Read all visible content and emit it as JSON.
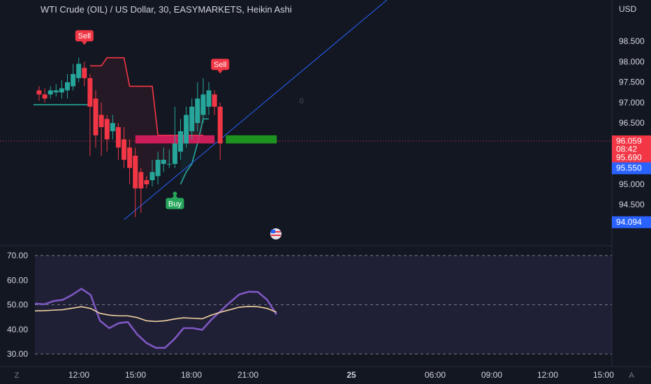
{
  "header": {
    "title": "WTI Crude (OIL) / US Dollar, 30, EASYMARKETS, Heikin Ashi",
    "currency": "USD"
  },
  "footer": {
    "left_label": "Z",
    "right_label": "A"
  },
  "colors": {
    "background": "#131722",
    "bull": "#26a69a",
    "bear": "#f23645",
    "trendline": "#2962ff",
    "supertrend_up": "#26a69a",
    "supertrend_down": "#f23645",
    "rsi": "#7e57c2",
    "rsi_ma": "#f0d2a0"
  },
  "chart_data": [
    {
      "type": "candlestick",
      "x_tick_labels": [
        "12:00",
        "15:00",
        "18:00",
        "21:00",
        "25",
        "06:00",
        "09:00",
        "12:00",
        "15:00"
      ],
      "y_tick_labels": [
        "98.500",
        "98.000",
        "97.500",
        "97.000",
        "96.500",
        "95.000",
        "94.500"
      ],
      "ylim": [
        93.7,
        99.0
      ],
      "candles": [
        {
          "o": 97.3,
          "c": 97.2,
          "h": 97.4,
          "l": 97.05
        },
        {
          "o": 97.2,
          "c": 97.1,
          "h": 97.35,
          "l": 97.0
        },
        {
          "o": 97.2,
          "c": 97.3,
          "h": 97.4,
          "l": 97.1
        },
        {
          "o": 97.25,
          "c": 97.3,
          "h": 97.45,
          "l": 97.15
        },
        {
          "o": 97.25,
          "c": 97.35,
          "h": 97.55,
          "l": 97.1
        },
        {
          "o": 97.3,
          "c": 97.5,
          "h": 97.7,
          "l": 97.1
        },
        {
          "o": 97.4,
          "c": 97.7,
          "h": 97.95,
          "l": 97.3
        },
        {
          "o": 97.6,
          "c": 97.95,
          "h": 98.1,
          "l": 97.5
        },
        {
          "o": 97.85,
          "c": 97.6,
          "h": 98.0,
          "l": 97.4
        },
        {
          "o": 97.6,
          "c": 96.9,
          "h": 97.7,
          "l": 95.7
        },
        {
          "o": 97.1,
          "c": 96.2,
          "h": 97.3,
          "l": 95.9
        },
        {
          "o": 96.7,
          "c": 96.4,
          "h": 97.0,
          "l": 95.7
        },
        {
          "o": 96.6,
          "c": 96.1,
          "h": 96.7,
          "l": 95.8
        },
        {
          "o": 96.3,
          "c": 96.5,
          "h": 96.7,
          "l": 96.1
        },
        {
          "o": 96.4,
          "c": 95.9,
          "h": 96.5,
          "l": 95.6
        },
        {
          "o": 96.1,
          "c": 95.6,
          "h": 96.4,
          "l": 95.4
        },
        {
          "o": 95.9,
          "c": 95.4,
          "h": 96.1,
          "l": 95.0
        },
        {
          "o": 95.7,
          "c": 94.9,
          "h": 95.9,
          "l": 94.2
        },
        {
          "o": 95.3,
          "c": 94.9,
          "h": 95.4,
          "l": 94.3
        },
        {
          "o": 95.1,
          "c": 95.0,
          "h": 95.2,
          "l": 94.9
        },
        {
          "o": 95.1,
          "c": 95.3,
          "h": 95.6,
          "l": 94.95
        },
        {
          "o": 95.2,
          "c": 95.6,
          "h": 95.8,
          "l": 95.0
        },
        {
          "o": 95.5,
          "c": 95.6,
          "h": 95.9,
          "l": 95.3
        },
        {
          "o": 95.5,
          "c": 95.5,
          "h": 95.85,
          "l": 95.4
        },
        {
          "o": 95.5,
          "c": 96.0,
          "h": 96.9,
          "l": 95.4
        },
        {
          "o": 95.8,
          "c": 96.3,
          "h": 96.6,
          "l": 95.6
        },
        {
          "o": 96.0,
          "c": 96.7,
          "h": 96.9,
          "l": 95.9
        },
        {
          "o": 96.3,
          "c": 96.9,
          "h": 97.1,
          "l": 96.1
        },
        {
          "o": 96.5,
          "c": 97.1,
          "h": 97.5,
          "l": 96.3
        },
        {
          "o": 96.7,
          "c": 97.2,
          "h": 97.6,
          "l": 96.5
        },
        {
          "o": 96.9,
          "c": 97.3,
          "h": 97.5,
          "l": 96.7
        },
        {
          "o": 97.2,
          "c": 96.9,
          "h": 97.3,
          "l": 96.7
        },
        {
          "o": 96.9,
          "c": 96.0,
          "h": 97.0,
          "l": 95.6
        }
      ],
      "supertrend": {
        "down": [
          97.9,
          97.9,
          97.9,
          98.1,
          98.1,
          98.1,
          98.1,
          97.4,
          97.4,
          97.4,
          97.4,
          97.4,
          96.2,
          96.2,
          96.2,
          96.2,
          96.2,
          96.2,
          96.2,
          96.2,
          96.2
        ],
        "down_start_index": 9,
        "up": [
          95.0,
          95.3,
          95.5,
          96.0,
          96.6,
          96.6
        ],
        "up_start_index": 25
      },
      "zones": [
        {
          "color": "#e91e63",
          "from_index": 17,
          "to_index": 31,
          "low": 96.0,
          "high": 96.2
        },
        {
          "color": "#1fa81f",
          "from_index": 33,
          "to_index": 42,
          "low": 96.0,
          "high": 96.2
        }
      ],
      "signals": [
        {
          "label": "Sell",
          "index": 8,
          "price": 98.5,
          "kind": "sell"
        },
        {
          "label": "Sell",
          "index": 32,
          "price": 97.8,
          "kind": "sell"
        },
        {
          "label": "Buy",
          "index": 24,
          "price": 94.7,
          "kind": "buy"
        }
      ],
      "trendline": {
        "from_index": 15,
        "from_price": 94.2,
        "to_index": 59,
        "to_price": 99.0
      },
      "price_labels": [
        {
          "text": "96.059",
          "color": "#f23645",
          "price": 96.06
        },
        {
          "text": "08:42",
          "color": "#f23645",
          "price": 95.86
        },
        {
          "text": "95.690",
          "color": "#f23645",
          "price": 95.66
        },
        {
          "text": "95.550",
          "color": "#2962ff",
          "price": 95.4
        },
        {
          "text": "94.094",
          "color": "#2962ff",
          "price": 94.08
        }
      ],
      "current_price": 96.059,
      "annotation": "0"
    },
    {
      "type": "line",
      "title": "",
      "y_tick_labels": [
        "70.00",
        "60.00",
        "50.00",
        "40.00",
        "30.00"
      ],
      "ylim": [
        30,
        70
      ],
      "band": [
        30,
        70
      ],
      "midline": 50,
      "series": [
        {
          "color": "#7e57c2",
          "values": [
            50.5,
            50.2,
            51.5,
            52.0,
            54.0,
            56.5,
            54.0,
            43.5,
            40.5,
            42.5,
            43.0,
            38.0,
            34.5,
            32.5,
            32.5,
            36.0,
            40.5,
            40.5,
            39.8,
            44.0,
            47.5,
            51.0,
            54.2,
            55.3,
            55.2,
            52.0,
            46.0
          ]
        },
        {
          "color": "#f0d2a0",
          "values": [
            47.5,
            47.6,
            47.8,
            48.0,
            48.6,
            49.2,
            48.5,
            46.5,
            45.8,
            45.5,
            45.5,
            44.8,
            43.5,
            43.2,
            43.5,
            44.2,
            44.7,
            44.5,
            44.3,
            45.8,
            47.0,
            48.0,
            49.0,
            49.3,
            49.2,
            48.5,
            47.0
          ]
        }
      ]
    }
  ]
}
